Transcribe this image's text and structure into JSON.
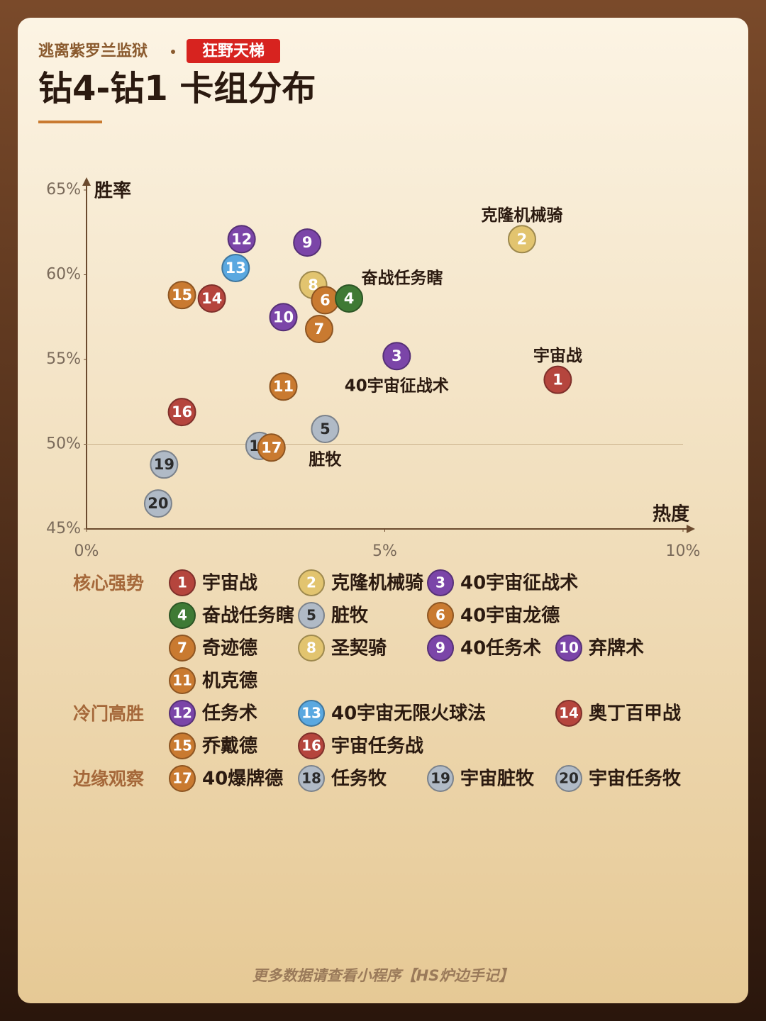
{
  "header": {
    "subtitle": "逃离紫罗兰监狱",
    "badge": "狂野天梯"
  },
  "chart_data": {
    "type": "scatter",
    "title": "钻4-钻1 卡组分布",
    "y_label": "胜率",
    "x_label": "热度",
    "xlim": [
      0,
      10
    ],
    "ylim": [
      45,
      65
    ],
    "xticks": [
      {
        "value": 0,
        "label": "0%"
      },
      {
        "value": 5,
        "label": "5%"
      },
      {
        "value": 10,
        "label": "10%"
      }
    ],
    "yticks": [
      {
        "value": 45,
        "label": "45%"
      },
      {
        "value": 50,
        "label": "50%"
      },
      {
        "value": 55,
        "label": "55%"
      },
      {
        "value": 60,
        "label": "60%"
      },
      {
        "value": 65,
        "label": "65%"
      }
    ],
    "hline": 50,
    "groups": [
      {
        "name": "核心强势",
        "series": [
          {
            "label": 1,
            "name": "宇宙战",
            "color": "#b5453d",
            "x": 7.9,
            "y": 53.8,
            "annotation": "宇宙战"
          },
          {
            "label": 2,
            "name": "克隆机械骑",
            "color": "#e2c46f",
            "x": 7.3,
            "y": 62.1,
            "annotation": "克隆机械骑"
          },
          {
            "label": 3,
            "name": "40宇宙征战术",
            "color": "#7b45a8",
            "x": 5.2,
            "y": 55.2,
            "annotation": "40宇宙征战术"
          },
          {
            "label": 4,
            "name": "奋战任务瞎",
            "color": "#3f7a35",
            "x": 4.4,
            "y": 58.6,
            "annotation": "奋战任务瞎"
          },
          {
            "label": 5,
            "name": "脏牧",
            "color": "#b0bac6",
            "x": 4.0,
            "y": 50.9,
            "annotation": "脏牧"
          },
          {
            "label": 6,
            "name": "40宇宙龙德",
            "color": "#c97a30",
            "x": 4.0,
            "y": 58.5
          },
          {
            "label": 7,
            "name": "奇迹德",
            "color": "#c97a30",
            "x": 3.9,
            "y": 56.8
          },
          {
            "label": 8,
            "name": "圣契骑",
            "color": "#e2c46f",
            "x": 3.8,
            "y": 59.4
          },
          {
            "label": 9,
            "name": "40任务术",
            "color": "#7b45a8",
            "x": 3.7,
            "y": 61.9
          },
          {
            "label": 10,
            "name": "弃牌术",
            "color": "#7b45a8",
            "x": 3.3,
            "y": 57.5
          },
          {
            "label": 11,
            "name": "机克德",
            "color": "#c97a30",
            "x": 3.3,
            "y": 53.4
          }
        ]
      },
      {
        "name": "冷门高胜",
        "series": [
          {
            "label": 12,
            "name": "任务术",
            "color": "#7b45a8",
            "x": 2.6,
            "y": 62.1
          },
          {
            "label": 13,
            "name": "40宇宙无限火球法",
            "color": "#5aa8e0",
            "x": 2.5,
            "y": 60.4
          },
          {
            "label": 14,
            "name": "奥丁百甲战",
            "color": "#b5453d",
            "x": 2.1,
            "y": 58.6
          },
          {
            "label": 15,
            "name": "乔戴德",
            "color": "#c97a30",
            "x": 1.6,
            "y": 58.8
          },
          {
            "label": 16,
            "name": "宇宙任务战",
            "color": "#b5453d",
            "x": 1.6,
            "y": 51.9
          }
        ]
      },
      {
        "name": "边缘观察",
        "series": [
          {
            "label": 17,
            "name": "40爆牌德",
            "color": "#c97a30",
            "x": 3.1,
            "y": 49.8
          },
          {
            "label": 18,
            "name": "任务牧",
            "color": "#b0bac6",
            "x": 2.9,
            "y": 49.9
          },
          {
            "label": 19,
            "name": "宇宙脏牧",
            "color": "#b0bac6",
            "x": 1.3,
            "y": 48.8
          },
          {
            "label": 20,
            "name": "宇宙任务牧",
            "color": "#b0bac6",
            "x": 1.2,
            "y": 46.5
          }
        ]
      }
    ]
  },
  "footer": "更多数据请查看小程序【HS炉边手记】"
}
